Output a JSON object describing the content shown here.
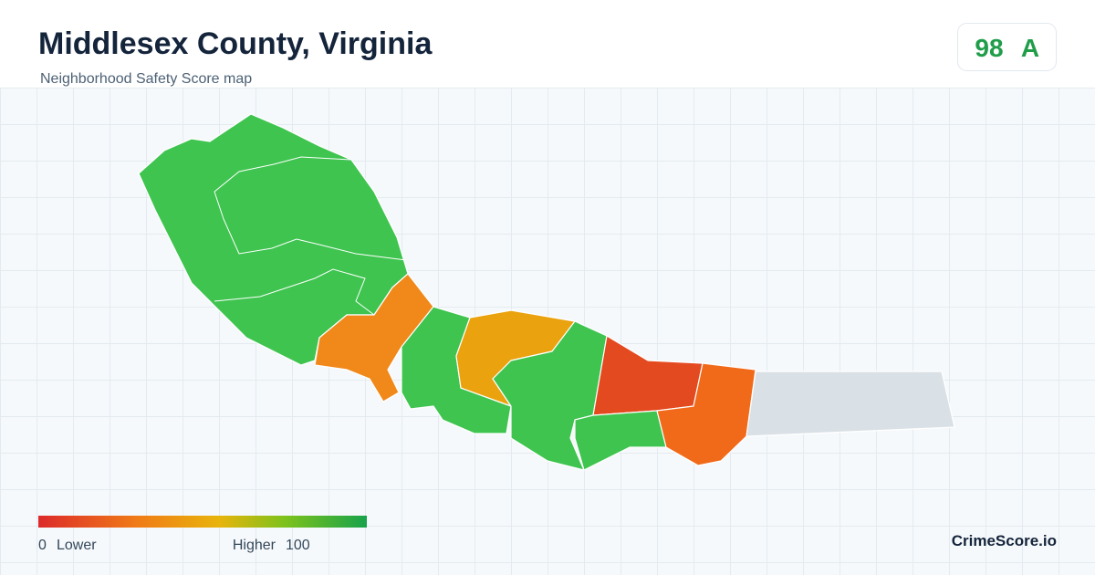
{
  "header": {
    "title": "Middlesex County, Virginia",
    "subtitle": "Neighborhood Safety Score map"
  },
  "badge": {
    "score": "98",
    "grade": "A"
  },
  "legend": {
    "min": "0",
    "min_label": "Lower",
    "max_label": "Higher",
    "max": "100"
  },
  "brand": "CrimeScore.io"
}
